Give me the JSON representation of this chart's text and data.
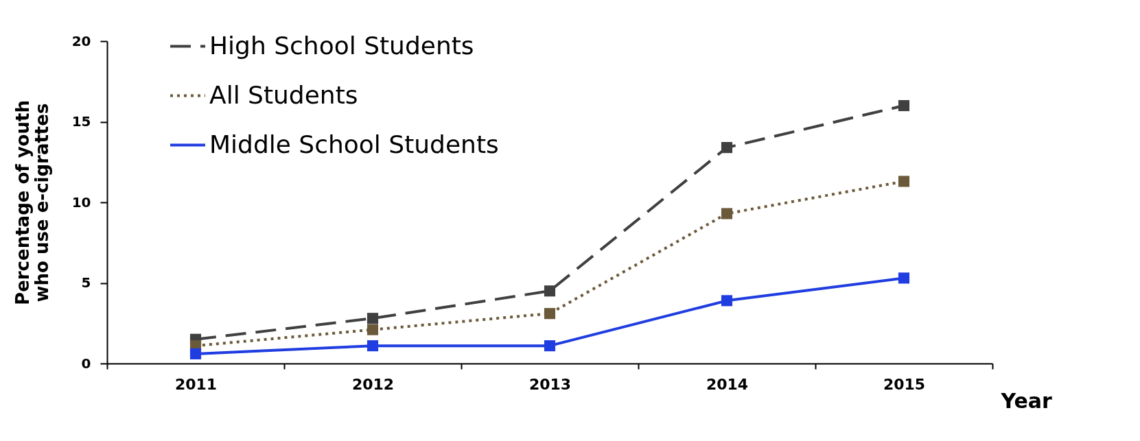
{
  "chart_data": {
    "type": "line",
    "xlabel": "Year",
    "ylabel": "Percentage of youth\nwho use e-cigrattes",
    "categories": [
      "2011",
      "2012",
      "2013",
      "2014",
      "2015"
    ],
    "series": [
      {
        "name": "High School Students",
        "color": "#404040",
        "line_style": "dashed",
        "values": [
          1.5,
          2.8,
          4.5,
          13.4,
          16.0
        ]
      },
      {
        "name": "All Students",
        "color": "#6b5a3a",
        "line_style": "dotted",
        "values": [
          1.1,
          2.1,
          3.1,
          9.3,
          11.3
        ]
      },
      {
        "name": "Middle School Students",
        "color": "#1f3de0",
        "line_style": "solid",
        "values": [
          0.6,
          1.1,
          1.1,
          3.9,
          5.3
        ]
      }
    ],
    "ylim": [
      0,
      20
    ],
    "yticks": [
      0,
      5,
      10,
      15,
      20
    ],
    "grid": false,
    "legend": "top left",
    "marker": "square"
  }
}
